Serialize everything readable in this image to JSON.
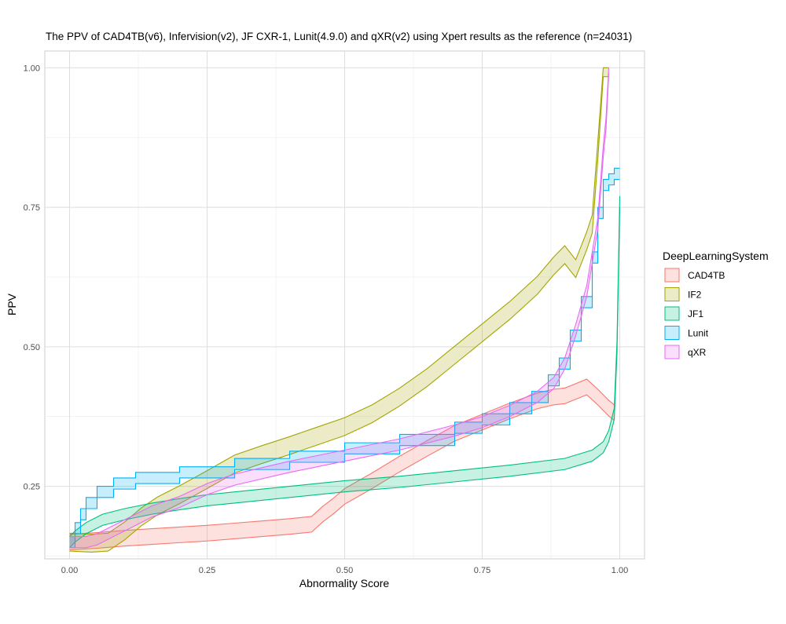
{
  "chart_data": {
    "type": "line",
    "title": "The PPV of CAD4TB(v6), Infervision(v2), JF CXR-1, Lunit(4.9.0) and qXR(v2) using Xpert results as the reference (n=24031)",
    "xlabel": "Abnormality Score",
    "ylabel": "PPV",
    "xlim": [
      -0.045,
      1.045
    ],
    "ylim": [
      0.12,
      1.03
    ],
    "xticks": [
      0,
      0.25,
      0.5,
      0.75,
      1
    ],
    "xtick_labels": [
      "0.00",
      "0.25",
      "0.50",
      "0.75",
      "1.00"
    ],
    "yticks": [
      0.25,
      0.5,
      0.75,
      1
    ],
    "ytick_labels": [
      "0.25",
      "0.50",
      "0.75",
      "1.00"
    ],
    "grid": true,
    "legend": {
      "title": "DeepLearningSystem",
      "placement": "right"
    },
    "series": [
      {
        "name": "CAD4TB",
        "color": "#F8766D",
        "band_width": 0.014,
        "step": false,
        "points": [
          [
            0.0,
            0.15
          ],
          [
            0.05,
            0.153
          ],
          [
            0.1,
            0.157
          ],
          [
            0.15,
            0.16
          ],
          [
            0.2,
            0.163
          ],
          [
            0.25,
            0.166
          ],
          [
            0.3,
            0.17
          ],
          [
            0.35,
            0.174
          ],
          [
            0.4,
            0.178
          ],
          [
            0.44,
            0.182
          ],
          [
            0.46,
            0.2
          ],
          [
            0.48,
            0.215
          ],
          [
            0.5,
            0.232
          ],
          [
            0.55,
            0.26
          ],
          [
            0.6,
            0.29
          ],
          [
            0.65,
            0.318
          ],
          [
            0.7,
            0.345
          ],
          [
            0.75,
            0.365
          ],
          [
            0.8,
            0.385
          ],
          [
            0.85,
            0.403
          ],
          [
            0.88,
            0.41
          ],
          [
            0.9,
            0.412
          ],
          [
            0.92,
            0.42
          ],
          [
            0.94,
            0.428
          ],
          [
            0.96,
            0.41
          ],
          [
            0.98,
            0.39
          ],
          [
            0.99,
            0.382
          ]
        ]
      },
      {
        "name": "IF2",
        "color": "#A3A500",
        "band_width": 0.016,
        "step": false,
        "points": [
          [
            0.0,
            0.15
          ],
          [
            0.04,
            0.148
          ],
          [
            0.07,
            0.15
          ],
          [
            0.1,
            0.17
          ],
          [
            0.13,
            0.195
          ],
          [
            0.16,
            0.215
          ],
          [
            0.2,
            0.235
          ],
          [
            0.25,
            0.262
          ],
          [
            0.3,
            0.29
          ],
          [
            0.35,
            0.307
          ],
          [
            0.4,
            0.323
          ],
          [
            0.45,
            0.34
          ],
          [
            0.5,
            0.357
          ],
          [
            0.55,
            0.38
          ],
          [
            0.6,
            0.41
          ],
          [
            0.65,
            0.445
          ],
          [
            0.7,
            0.485
          ],
          [
            0.75,
            0.525
          ],
          [
            0.8,
            0.565
          ],
          [
            0.85,
            0.61
          ],
          [
            0.88,
            0.645
          ],
          [
            0.9,
            0.665
          ],
          [
            0.92,
            0.64
          ],
          [
            0.94,
            0.69
          ],
          [
            0.95,
            0.72
          ],
          [
            0.96,
            0.85
          ],
          [
            0.97,
            1.0
          ],
          [
            0.98,
            1.0
          ]
        ]
      },
      {
        "name": "JF1",
        "color": "#00BF7D",
        "band_width": 0.01,
        "step": false,
        "points": [
          [
            0.0,
            0.15
          ],
          [
            0.01,
            0.16
          ],
          [
            0.03,
            0.175
          ],
          [
            0.06,
            0.19
          ],
          [
            0.1,
            0.2
          ],
          [
            0.15,
            0.21
          ],
          [
            0.2,
            0.218
          ],
          [
            0.25,
            0.225
          ],
          [
            0.3,
            0.23
          ],
          [
            0.4,
            0.24
          ],
          [
            0.5,
            0.25
          ],
          [
            0.6,
            0.258
          ],
          [
            0.7,
            0.268
          ],
          [
            0.8,
            0.278
          ],
          [
            0.9,
            0.29
          ],
          [
            0.95,
            0.305
          ],
          [
            0.97,
            0.32
          ],
          [
            0.98,
            0.34
          ],
          [
            0.99,
            0.38
          ],
          [
            0.995,
            0.5
          ],
          [
            1.0,
            0.76
          ]
        ]
      },
      {
        "name": "Lunit",
        "color": "#00B0F6",
        "band_width": 0.01,
        "step": true,
        "points": [
          [
            0.0,
            0.15
          ],
          [
            0.01,
            0.175
          ],
          [
            0.02,
            0.2
          ],
          [
            0.03,
            0.22
          ],
          [
            0.05,
            0.24
          ],
          [
            0.08,
            0.255
          ],
          [
            0.12,
            0.265
          ],
          [
            0.2,
            0.275
          ],
          [
            0.3,
            0.29
          ],
          [
            0.4,
            0.303
          ],
          [
            0.5,
            0.318
          ],
          [
            0.6,
            0.333
          ],
          [
            0.7,
            0.355
          ],
          [
            0.75,
            0.37
          ],
          [
            0.8,
            0.39
          ],
          [
            0.84,
            0.41
          ],
          [
            0.87,
            0.44
          ],
          [
            0.89,
            0.47
          ],
          [
            0.91,
            0.52
          ],
          [
            0.93,
            0.58
          ],
          [
            0.95,
            0.66
          ],
          [
            0.96,
            0.74
          ],
          [
            0.97,
            0.79
          ],
          [
            0.98,
            0.8
          ],
          [
            0.99,
            0.81
          ],
          [
            1.0,
            0.81
          ]
        ]
      },
      {
        "name": "qXR",
        "color": "#E76BF3",
        "band_width": 0.01,
        "step": false,
        "points": [
          [
            0.0,
            0.15
          ],
          [
            0.03,
            0.15
          ],
          [
            0.05,
            0.155
          ],
          [
            0.08,
            0.17
          ],
          [
            0.12,
            0.19
          ],
          [
            0.15,
            0.205
          ],
          [
            0.2,
            0.222
          ],
          [
            0.25,
            0.245
          ],
          [
            0.3,
            0.262
          ],
          [
            0.4,
            0.285
          ],
          [
            0.5,
            0.305
          ],
          [
            0.6,
            0.325
          ],
          [
            0.7,
            0.35
          ],
          [
            0.75,
            0.365
          ],
          [
            0.8,
            0.385
          ],
          [
            0.85,
            0.41
          ],
          [
            0.88,
            0.435
          ],
          [
            0.9,
            0.47
          ],
          [
            0.92,
            0.53
          ],
          [
            0.94,
            0.6
          ],
          [
            0.96,
            0.72
          ],
          [
            0.97,
            0.85
          ],
          [
            0.975,
            0.9
          ],
          [
            0.98,
            1.0
          ]
        ]
      }
    ]
  }
}
